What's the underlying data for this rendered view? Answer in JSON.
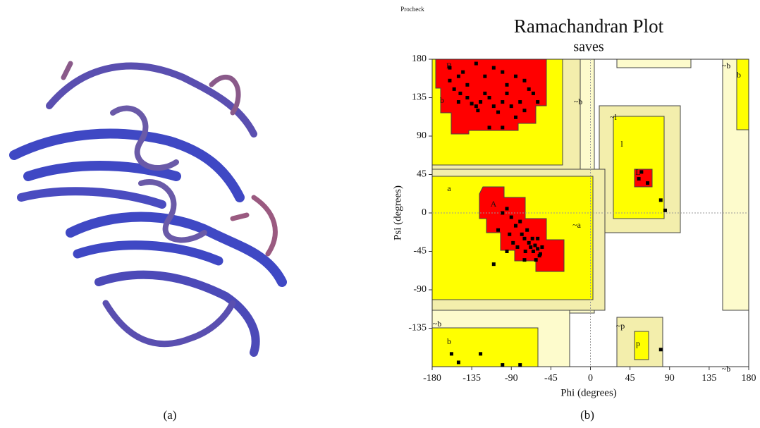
{
  "figure": {
    "caption_a": "(a)",
    "caption_b": "(b)",
    "program": "Procheck"
  },
  "chart_data": {
    "type": "scatter",
    "title": "Ramachandran Plot",
    "subtitle": "saves",
    "xlabel": "Phi (degrees)",
    "ylabel": "Psi (degrees)",
    "xlim": [
      -180,
      180
    ],
    "ylim": [
      -180,
      180
    ],
    "xticks": [
      -180,
      -135,
      -90,
      -45,
      0,
      45,
      90,
      135,
      180
    ],
    "yticks": [
      -135,
      -90,
      -45,
      0,
      45,
      90,
      135,
      180
    ],
    "color": "#000000",
    "annotations": [
      "B",
      "b",
      "~b",
      "~l",
      "l",
      "L",
      "a",
      "A",
      "~a",
      "~b",
      "b",
      "~b",
      "~p",
      "p",
      "b",
      "~b"
    ],
    "x": [
      -160,
      -150,
      -145,
      -130,
      -120,
      -110,
      -100,
      -95,
      -85,
      -75,
      -70,
      -65,
      -60,
      -155,
      -148,
      -140,
      -135,
      -130,
      -128,
      -125,
      -120,
      -115,
      -110,
      -105,
      -100,
      -95,
      -90,
      -85,
      -80,
      -75,
      -140,
      -160,
      -150,
      -100,
      -115,
      -105,
      -100,
      -95,
      -90,
      -85,
      -80,
      -78,
      -75,
      -72,
      -70,
      -68,
      -65,
      -63,
      -60,
      -58,
      -55,
      -62,
      -66,
      -74,
      -88,
      -92,
      -83,
      -110,
      -95,
      -75,
      -60,
      -57,
      55,
      65,
      58,
      80,
      85,
      80,
      -158,
      -150,
      -125,
      -100,
      -80
    ],
    "values": [
      170,
      160,
      165,
      175,
      160,
      170,
      165,
      150,
      160,
      155,
      145,
      140,
      130,
      145,
      140,
      135,
      128,
      125,
      120,
      130,
      140,
      135,
      125,
      118,
      130,
      140,
      125,
      112,
      130,
      120,
      150,
      155,
      130,
      100,
      100,
      -20,
      0,
      5,
      -5,
      -15,
      -10,
      -25,
      -30,
      -20,
      -35,
      -40,
      -45,
      -38,
      -42,
      -50,
      -40,
      -55,
      -30,
      -45,
      -35,
      -25,
      -40,
      -60,
      -45,
      -55,
      -30,
      -48,
      40,
      35,
      48,
      15,
      3,
      -160,
      -165,
      -175,
      -165,
      -178,
      -178
    ]
  }
}
